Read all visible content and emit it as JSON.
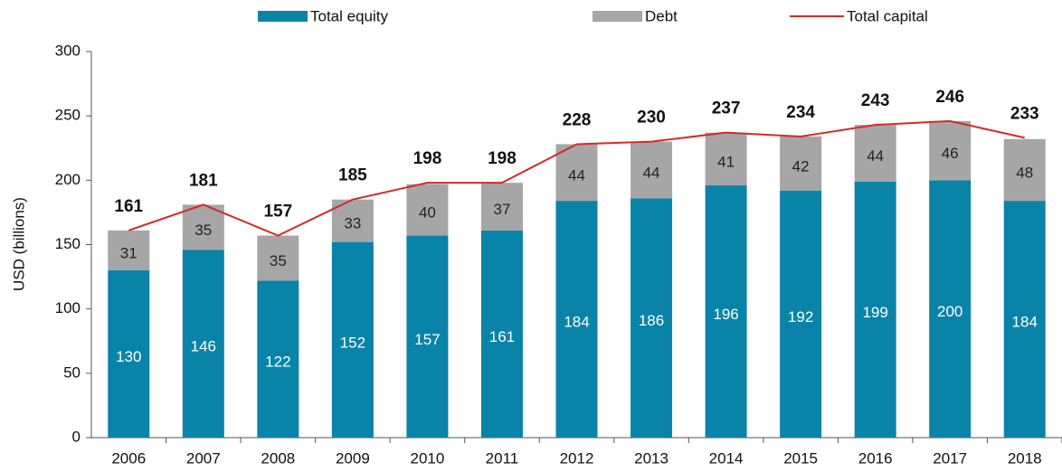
{
  "chart_data": {
    "type": "bar",
    "stacked": true,
    "categories": [
      "2006",
      "2007",
      "2008",
      "2009",
      "2010",
      "2011",
      "2012",
      "2013",
      "2014",
      "2015",
      "2016",
      "2017",
      "2018"
    ],
    "series": [
      {
        "name": "Total equity",
        "type": "bar",
        "color": "#0a83a8",
        "label_color": "#ffffff",
        "values": [
          130,
          146,
          122,
          152,
          157,
          161,
          184,
          186,
          196,
          192,
          199,
          200,
          184
        ]
      },
      {
        "name": "Debt",
        "type": "bar",
        "color": "#a6a6a6",
        "label_color": "#222222",
        "values": [
          31,
          35,
          35,
          33,
          40,
          37,
          44,
          44,
          41,
          42,
          44,
          46,
          48
        ]
      },
      {
        "name": "Total capital",
        "type": "line",
        "color": "#d42a2a",
        "values": [
          161,
          181,
          157,
          185,
          198,
          198,
          228,
          230,
          237,
          234,
          243,
          246,
          233
        ]
      }
    ],
    "ylabel": "USD (billions)",
    "ylim": [
      0,
      300
    ],
    "yticks": [
      0,
      50,
      100,
      150,
      200,
      250,
      300
    ],
    "grid": false,
    "legend": "top"
  }
}
